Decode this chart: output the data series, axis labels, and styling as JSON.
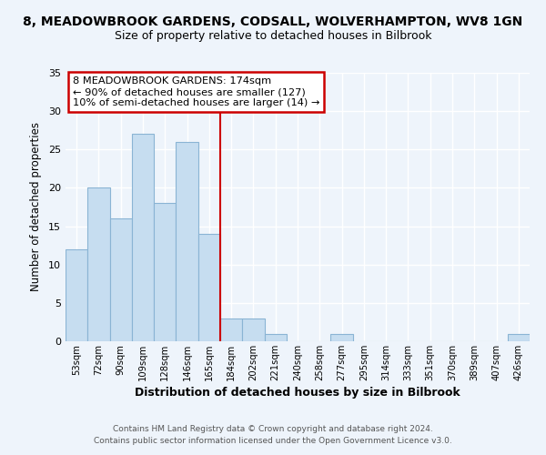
{
  "title": "8, MEADOWBROOK GARDENS, CODSALL, WOLVERHAMPTON, WV8 1GN",
  "subtitle": "Size of property relative to detached houses in Bilbrook",
  "xlabel": "Distribution of detached houses by size in Bilbrook",
  "ylabel": "Number of detached properties",
  "bar_labels": [
    "53sqm",
    "72sqm",
    "90sqm",
    "109sqm",
    "128sqm",
    "146sqm",
    "165sqm",
    "184sqm",
    "202sqm",
    "221sqm",
    "240sqm",
    "258sqm",
    "277sqm",
    "295sqm",
    "314sqm",
    "333sqm",
    "351sqm",
    "370sqm",
    "389sqm",
    "407sqm",
    "426sqm"
  ],
  "bar_values": [
    12,
    20,
    16,
    27,
    18,
    26,
    14,
    3,
    3,
    1,
    0,
    0,
    1,
    0,
    0,
    0,
    0,
    0,
    0,
    0,
    1
  ],
  "bar_color": "#c6ddf0",
  "bar_edge_color": "#8ab4d4",
  "vline_x": 6.5,
  "vline_color": "#cc0000",
  "ylim": [
    0,
    35
  ],
  "yticks": [
    0,
    5,
    10,
    15,
    20,
    25,
    30,
    35
  ],
  "annotation_title": "8 MEADOWBROOK GARDENS: 174sqm",
  "annotation_line1": "← 90% of detached houses are smaller (127)",
  "annotation_line2": "10% of semi-detached houses are larger (14) →",
  "annotation_box_facecolor": "#ffffff",
  "annotation_box_edgecolor": "#cc0000",
  "footer_line1": "Contains HM Land Registry data © Crown copyright and database right 2024.",
  "footer_line2": "Contains public sector information licensed under the Open Government Licence v3.0.",
  "background_color": "#eef4fb",
  "plot_bg_color": "#eef4fb",
  "grid_color": "#ffffff",
  "title_fontsize": 10,
  "subtitle_fontsize": 9
}
